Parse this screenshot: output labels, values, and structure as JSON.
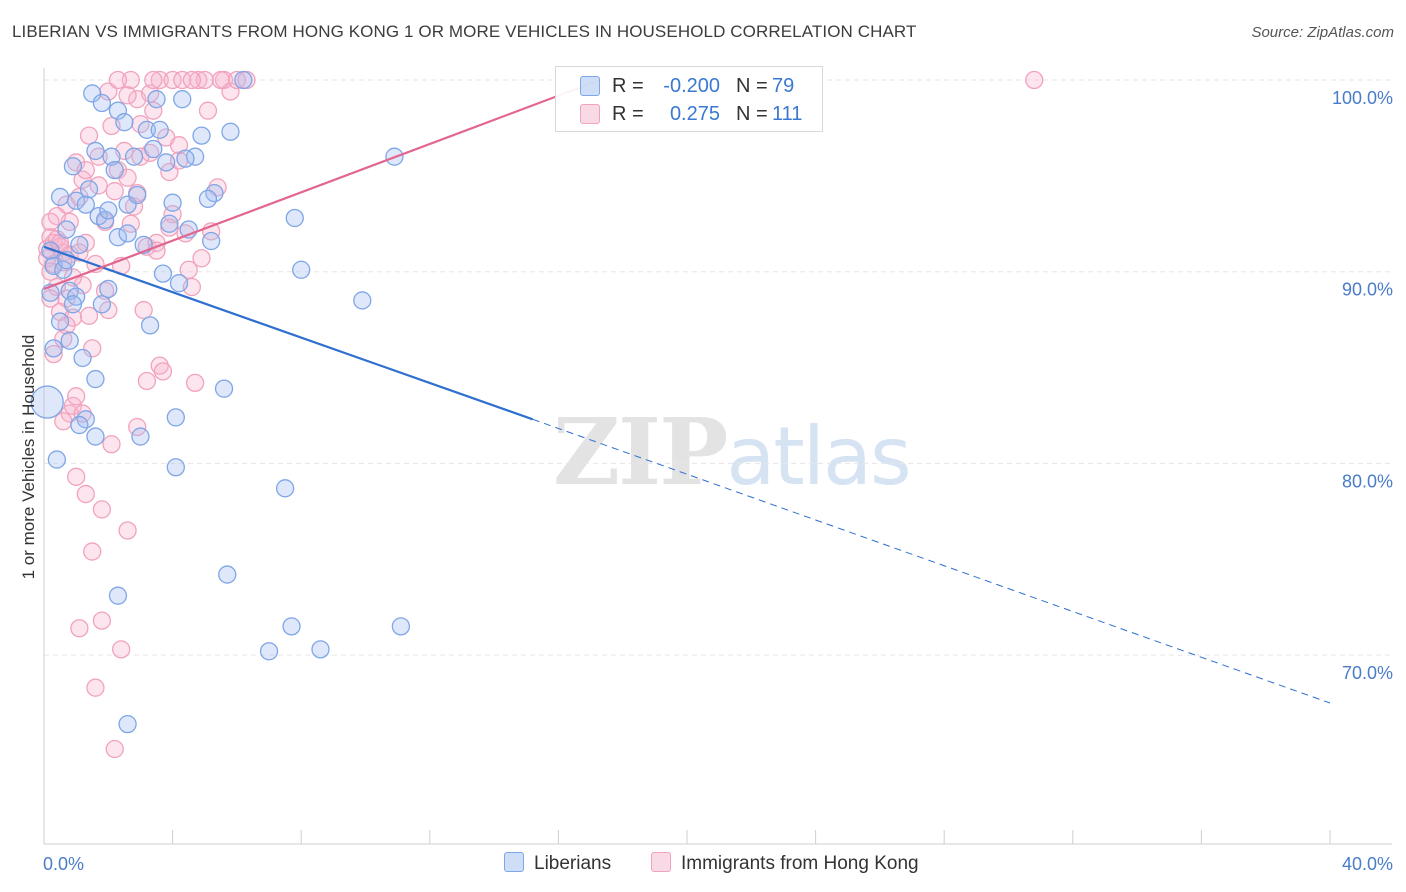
{
  "title": "LIBERIAN VS IMMIGRANTS FROM HONG KONG 1 OR MORE VEHICLES IN HOUSEHOLD CORRELATION CHART",
  "source": "Source: ZipAtlas.com",
  "watermark": {
    "zip": "ZIP",
    "atlas": "atlas"
  },
  "colors": {
    "blue": "#7fa6e6",
    "blue_fill": "rgba(160,190,240,0.35)",
    "blue_line": "#2e6fcf",
    "pink": "#f1a3bd",
    "pink_fill": "rgba(245,180,205,0.35)",
    "pink_line": "#e2668f",
    "tick_label": "#4a7cc9",
    "grid": "#e6e6e6"
  },
  "legend_top": {
    "rows": [
      {
        "r_label": "R =",
        "r_value": "-0.200",
        "n_label": "N =",
        "n_value": "79"
      },
      {
        "r_label": "R =",
        "r_value": "0.275",
        "n_label": "N =",
        "n_value": "111"
      }
    ]
  },
  "legend_bottom": {
    "items": [
      "Liberians",
      "Immigrants from Hong Kong"
    ]
  },
  "chart_data": {
    "type": "scatter",
    "title": "LIBERIAN VS IMMIGRANTS FROM HONG KONG 1 OR MORE VEHICLES IN HOUSEHOLD CORRELATION CHART",
    "xlabel": "",
    "ylabel": "1 or more Vehicles in Household",
    "xlim": [
      0,
      40
    ],
    "ylim": [
      60,
      100
    ],
    "x_tick_labels": [
      "0.0%",
      "40.0%"
    ],
    "y_ticks": [
      70,
      80,
      90,
      100
    ],
    "y_tick_labels": [
      "70.0%",
      "80.0%",
      "90.0%",
      "100.0%"
    ],
    "grid": true,
    "legend_placement": "top-center",
    "series": [
      {
        "name": "Liberians",
        "color": "#7fa6e6",
        "r": -0.2,
        "n": 79,
        "trend": {
          "x0": 0,
          "y0": 91.3,
          "x1": 15.2,
          "y1": 82.3,
          "dashed_to_x": 40,
          "dashed_to_y": 67.5
        },
        "points": [
          [
            0.1,
            83.2
          ],
          [
            0.2,
            91.1
          ],
          [
            0.2,
            88.9
          ],
          [
            0.3,
            86.0
          ],
          [
            0.3,
            90.3
          ],
          [
            0.4,
            80.2
          ],
          [
            0.5,
            87.4
          ],
          [
            0.5,
            93.9
          ],
          [
            0.6,
            90.1
          ],
          [
            0.7,
            92.2
          ],
          [
            0.7,
            90.6
          ],
          [
            0.8,
            89.0
          ],
          [
            0.8,
            86.4
          ],
          [
            0.9,
            95.5
          ],
          [
            1.0,
            93.7
          ],
          [
            1.0,
            88.7
          ],
          [
            1.1,
            91.4
          ],
          [
            1.2,
            85.5
          ],
          [
            1.3,
            93.5
          ],
          [
            1.3,
            82.3
          ],
          [
            1.4,
            94.3
          ],
          [
            1.5,
            99.3
          ],
          [
            1.6,
            84.4
          ],
          [
            1.6,
            96.3
          ],
          [
            1.6,
            81.4
          ],
          [
            1.7,
            92.9
          ],
          [
            1.8,
            98.8
          ],
          [
            1.8,
            88.3
          ],
          [
            1.9,
            92.7
          ],
          [
            2.0,
            89.1
          ],
          [
            2.1,
            96.0
          ],
          [
            2.2,
            95.3
          ],
          [
            2.3,
            91.8
          ],
          [
            2.3,
            73.1
          ],
          [
            2.3,
            98.4
          ],
          [
            2.5,
            97.8
          ],
          [
            2.6,
            92.0
          ],
          [
            2.6,
            93.5
          ],
          [
            2.6,
            66.4
          ],
          [
            2.8,
            96.0
          ],
          [
            2.9,
            94.0
          ],
          [
            3.0,
            81.4
          ],
          [
            3.1,
            91.4
          ],
          [
            3.2,
            97.4
          ],
          [
            3.3,
            87.2
          ],
          [
            3.4,
            96.4
          ],
          [
            3.6,
            97.4
          ],
          [
            3.7,
            89.9
          ],
          [
            3.8,
            95.7
          ],
          [
            3.9,
            92.5
          ],
          [
            4.0,
            93.6
          ],
          [
            4.1,
            82.4
          ],
          [
            4.1,
            79.8
          ],
          [
            4.2,
            89.4
          ],
          [
            4.3,
            99.0
          ],
          [
            4.5,
            92.2
          ],
          [
            4.7,
            96.0
          ],
          [
            4.9,
            97.1
          ],
          [
            5.2,
            91.6
          ],
          [
            5.3,
            94.1
          ],
          [
            5.6,
            83.9
          ],
          [
            5.7,
            74.2
          ],
          [
            5.8,
            97.3
          ],
          [
            6.2,
            100.0
          ],
          [
            7.0,
            70.2
          ],
          [
            7.5,
            78.7
          ],
          [
            7.7,
            71.5
          ],
          [
            7.8,
            92.8
          ],
          [
            8.0,
            90.1
          ],
          [
            8.6,
            70.3
          ],
          [
            9.9,
            88.5
          ],
          [
            10.9,
            96.0
          ],
          [
            11.1,
            71.5
          ],
          [
            0.9,
            88.3
          ],
          [
            1.1,
            82.0
          ],
          [
            2.0,
            93.2
          ],
          [
            3.5,
            99.0
          ],
          [
            4.4,
            95.9
          ],
          [
            5.1,
            93.8
          ]
        ]
      },
      {
        "name": "Immigrants from Hong Kong",
        "color": "#f1a3bd",
        "r": 0.275,
        "n": 111,
        "trend": {
          "x0": 0,
          "y0": 89.1,
          "x1": 17.3,
          "y1": 100.0
        },
        "points": [
          [
            0.1,
            91.2
          ],
          [
            0.1,
            90.7
          ],
          [
            0.2,
            91.8
          ],
          [
            0.2,
            90.0
          ],
          [
            0.3,
            91.5
          ],
          [
            0.3,
            90.4
          ],
          [
            0.4,
            91.7
          ],
          [
            0.4,
            89.2
          ],
          [
            0.5,
            91.3
          ],
          [
            0.5,
            87.9
          ],
          [
            0.6,
            91.0
          ],
          [
            0.6,
            86.5
          ],
          [
            0.7,
            93.5
          ],
          [
            0.7,
            88.6
          ],
          [
            0.8,
            92.6
          ],
          [
            0.8,
            82.6
          ],
          [
            0.9,
            87.6
          ],
          [
            0.9,
            83.0
          ],
          [
            1.0,
            95.7
          ],
          [
            1.0,
            79.3
          ],
          [
            1.1,
            93.9
          ],
          [
            1.1,
            71.4
          ],
          [
            1.2,
            89.3
          ],
          [
            1.2,
            94.8
          ],
          [
            1.3,
            91.5
          ],
          [
            1.3,
            78.4
          ],
          [
            1.4,
            87.7
          ],
          [
            1.5,
            75.4
          ],
          [
            1.6,
            90.4
          ],
          [
            1.6,
            68.3
          ],
          [
            1.7,
            94.5
          ],
          [
            1.8,
            77.6
          ],
          [
            1.8,
            71.8
          ],
          [
            1.9,
            92.6
          ],
          [
            2.0,
            99.4
          ],
          [
            2.1,
            97.6
          ],
          [
            2.1,
            81.0
          ],
          [
            2.2,
            65.1
          ],
          [
            2.3,
            95.3
          ],
          [
            2.4,
            90.3
          ],
          [
            2.4,
            70.3
          ],
          [
            2.5,
            96.3
          ],
          [
            2.6,
            94.9
          ],
          [
            2.6,
            76.5
          ],
          [
            2.7,
            100.0
          ],
          [
            2.8,
            93.4
          ],
          [
            2.9,
            99.0
          ],
          [
            2.9,
            81.9
          ],
          [
            3.0,
            97.7
          ],
          [
            3.1,
            88.0
          ],
          [
            3.2,
            91.3
          ],
          [
            3.2,
            84.3
          ],
          [
            3.3,
            96.2
          ],
          [
            3.4,
            98.4
          ],
          [
            3.5,
            91.5
          ],
          [
            3.6,
            100.0
          ],
          [
            3.6,
            85.1
          ],
          [
            3.7,
            84.8
          ],
          [
            3.8,
            97.0
          ],
          [
            3.9,
            95.2
          ],
          [
            4.0,
            100.0
          ],
          [
            4.2,
            95.8
          ],
          [
            4.3,
            100.0
          ],
          [
            4.4,
            92.0
          ],
          [
            4.5,
            90.1
          ],
          [
            4.6,
            89.2
          ],
          [
            4.7,
            84.2
          ],
          [
            4.8,
            100.0
          ],
          [
            5.0,
            100.0
          ],
          [
            5.1,
            98.4
          ],
          [
            5.2,
            92.1
          ],
          [
            5.4,
            94.4
          ],
          [
            5.6,
            100.0
          ],
          [
            5.8,
            99.4
          ],
          [
            6.0,
            100.0
          ],
          [
            6.3,
            100.0
          ],
          [
            0.2,
            88.6
          ],
          [
            0.4,
            92.9
          ],
          [
            0.6,
            82.2
          ],
          [
            0.8,
            90.9
          ],
          [
            1.0,
            83.5
          ],
          [
            1.4,
            97.1
          ],
          [
            1.7,
            96.0
          ],
          [
            2.3,
            100.0
          ],
          [
            2.9,
            94.1
          ],
          [
            3.5,
            91.1
          ],
          [
            4.9,
            90.7
          ],
          [
            30.8,
            100.0
          ],
          [
            0.3,
            85.7
          ],
          [
            0.7,
            87.2
          ],
          [
            1.2,
            82.6
          ],
          [
            1.5,
            86.0
          ],
          [
            2.6,
            99.2
          ],
          [
            3.0,
            96.0
          ],
          [
            4.0,
            93.0
          ],
          [
            0.9,
            89.7
          ],
          [
            1.1,
            91.0
          ],
          [
            1.9,
            89.0
          ],
          [
            2.2,
            94.2
          ],
          [
            2.7,
            92.5
          ],
          [
            3.3,
            99.3
          ],
          [
            3.9,
            92.3
          ],
          [
            4.6,
            100.0
          ],
          [
            5.5,
            100.0
          ],
          [
            0.5,
            91.5
          ],
          [
            0.2,
            92.6
          ],
          [
            0.6,
            90.5
          ],
          [
            1.3,
            95.3
          ],
          [
            2.0,
            88.0
          ],
          [
            3.4,
            100.0
          ],
          [
            4.2,
            96.6
          ]
        ]
      }
    ]
  }
}
